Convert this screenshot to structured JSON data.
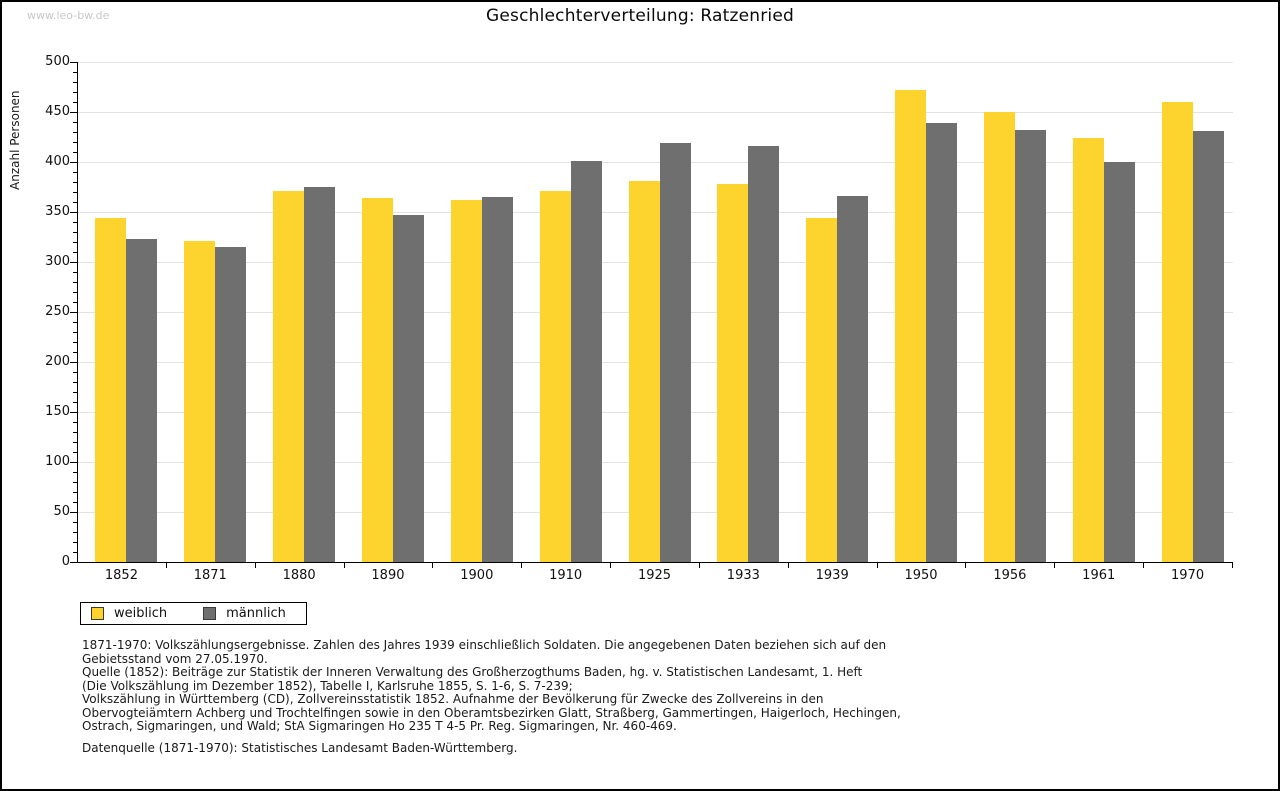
{
  "watermark": "www.leo-bw.de",
  "title": "Geschlechterverteilung: Ratzenried",
  "colors": {
    "female": "#FDD42D",
    "male": "#6F6F6F",
    "gridline": "#E2E2E2",
    "axis": "#000000",
    "watermark": "#C8C8C8"
  },
  "chart_data": {
    "type": "bar",
    "title": "Geschlechterverteilung: Ratzenried",
    "xlabel": "",
    "ylabel": "Anzahl Personen",
    "categories": [
      "1852",
      "1871",
      "1880",
      "1890",
      "1900",
      "1910",
      "1925",
      "1933",
      "1939",
      "1950",
      "1956",
      "1961",
      "1970"
    ],
    "series": [
      {
        "name": "weiblich",
        "color": "#FDD42D",
        "values": [
          344,
          321,
          371,
          364,
          362,
          371,
          381,
          378,
          344,
          472,
          450,
          424,
          460
        ]
      },
      {
        "name": "männlich",
        "color": "#6F6F6F",
        "values": [
          323,
          315,
          375,
          347,
          365,
          401,
          419,
          416,
          366,
          439,
          432,
          400,
          431
        ]
      }
    ],
    "ylim": [
      0,
      500
    ],
    "ytick_major_step": 50,
    "ytick_minor_step": 10,
    "grid": true,
    "legend_position": "bottom-left"
  },
  "legend": {
    "items": [
      {
        "label": "weiblich",
        "color": "#FDD42D"
      },
      {
        "label": "männlich",
        "color": "#6F6F6F"
      }
    ]
  },
  "footnotes": {
    "lines": [
      "1871-1970: Volkszählungsergebnisse. Zahlen des Jahres 1939 einschließlich Soldaten. Die angegebenen Daten beziehen sich auf den",
      "Gebietsstand vom 27.05.1970.",
      "Quelle (1852): Beiträge zur Statistik der Inneren Verwaltung des Großherzogthums Baden, hg. v. Statistischen Landesamt, 1. Heft",
      "(Die Volkszählung im Dezember 1852), Tabelle I, Karlsruhe 1855, S. 1-6, S. 7-239;",
      "Volkszählung in Württemberg (CD), Zollvereinsstatistik 1852. Aufnahme der Bevölkerung für Zwecke des Zollvereins in den",
      "Obervogteiämtern Achberg und Trochtelfingen sowie in den Oberamtsbezirken Glatt, Straßberg, Gammertingen, Haigerloch, Hechingen,",
      "Ostrach, Sigmaringen, und Wald; StA Sigmaringen Ho 235 T 4-5 Pr. Reg. Sigmaringen, Nr. 460-469."
    ],
    "datasource": "Datenquelle (1871-1970): Statistisches Landesamt Baden-Württemberg."
  }
}
